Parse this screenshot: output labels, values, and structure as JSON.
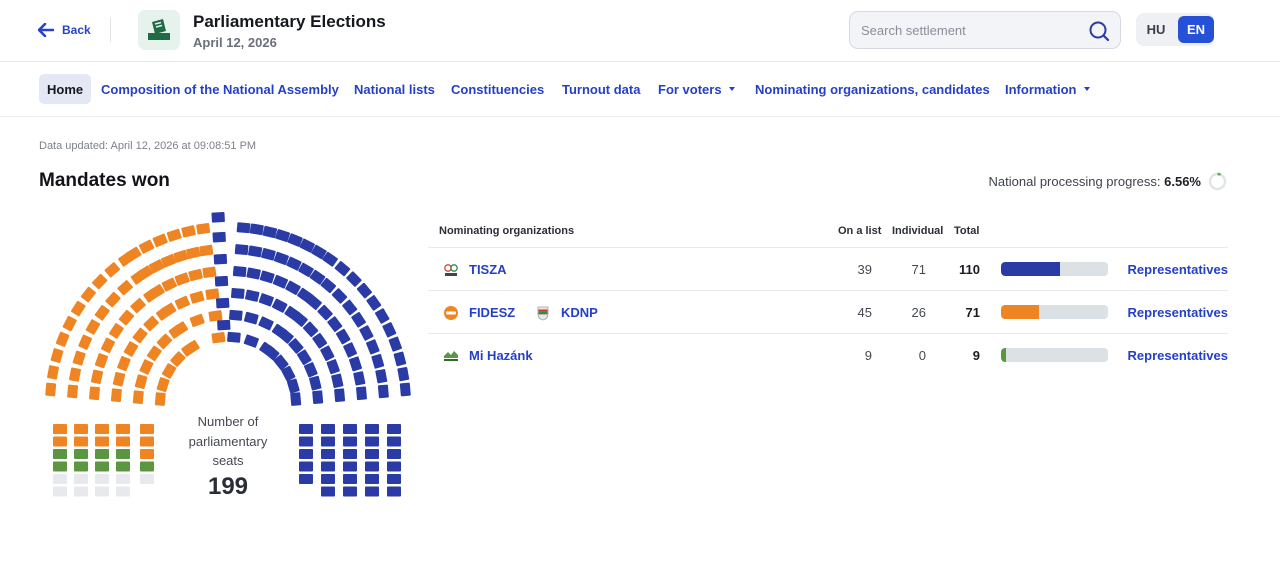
{
  "header": {
    "back_label": "Back",
    "title": "Parliamentary Elections",
    "date": "April 12, 2026",
    "search_placeholder": "Search settlement",
    "lang_hu": "HU",
    "lang_en": "EN",
    "active_lang": "EN"
  },
  "nav": {
    "items": [
      {
        "label": "Home",
        "active": true
      },
      {
        "label": "Composition of the National Assembly"
      },
      {
        "label": "National lists"
      },
      {
        "label": "Constituencies"
      },
      {
        "label": "Turnout data"
      },
      {
        "label": "For voters",
        "dropdown": true
      },
      {
        "label": "Nominating organizations, candidates"
      },
      {
        "label": "Information",
        "dropdown": true
      }
    ]
  },
  "main": {
    "updated": "Data updated: April 12, 2026 at 09:08:51 PM",
    "title": "Mandates won",
    "progress_label": "National processing progress:",
    "progress_value": "6.56%",
    "progress_fraction": 0.0656
  },
  "chart": {
    "caption": "Number of parliamentary seats",
    "total": "199",
    "total_seats": 199
  },
  "table": {
    "headers": {
      "org": "Nominating organizations",
      "list": "On a list",
      "individual": "Individual",
      "total": "Total"
    },
    "rows": [
      {
        "parties": [
          {
            "name": "TISZA",
            "icon": "tisza-logo-icon"
          }
        ],
        "list": "39",
        "individual": "71",
        "total": "110",
        "share": 0.5528,
        "color": "#2a3ba5",
        "link": "Representatives"
      },
      {
        "parties": [
          {
            "name": "FIDESZ",
            "icon": "fidesz-logo-icon"
          },
          {
            "name": "KDNP",
            "icon": "kdnp-logo-icon"
          }
        ],
        "list": "45",
        "individual": "26",
        "total": "71",
        "share": 0.3568,
        "color": "#ee8522",
        "link": "Representatives"
      },
      {
        "parties": [
          {
            "name": "Mi Hazánk",
            "icon": "mi-hazank-logo-icon"
          }
        ],
        "list": "9",
        "individual": "0",
        "total": "9",
        "share": 0.0452,
        "color": "#5b9642",
        "link": "Representatives"
      }
    ]
  },
  "colors": {
    "tisza": "#2a3ba5",
    "fidesz": "#ee8522",
    "mi_hazank": "#5b9642",
    "undecided": "#e7e9ec",
    "accent": "#2550d8",
    "link": "#2540c7"
  }
}
